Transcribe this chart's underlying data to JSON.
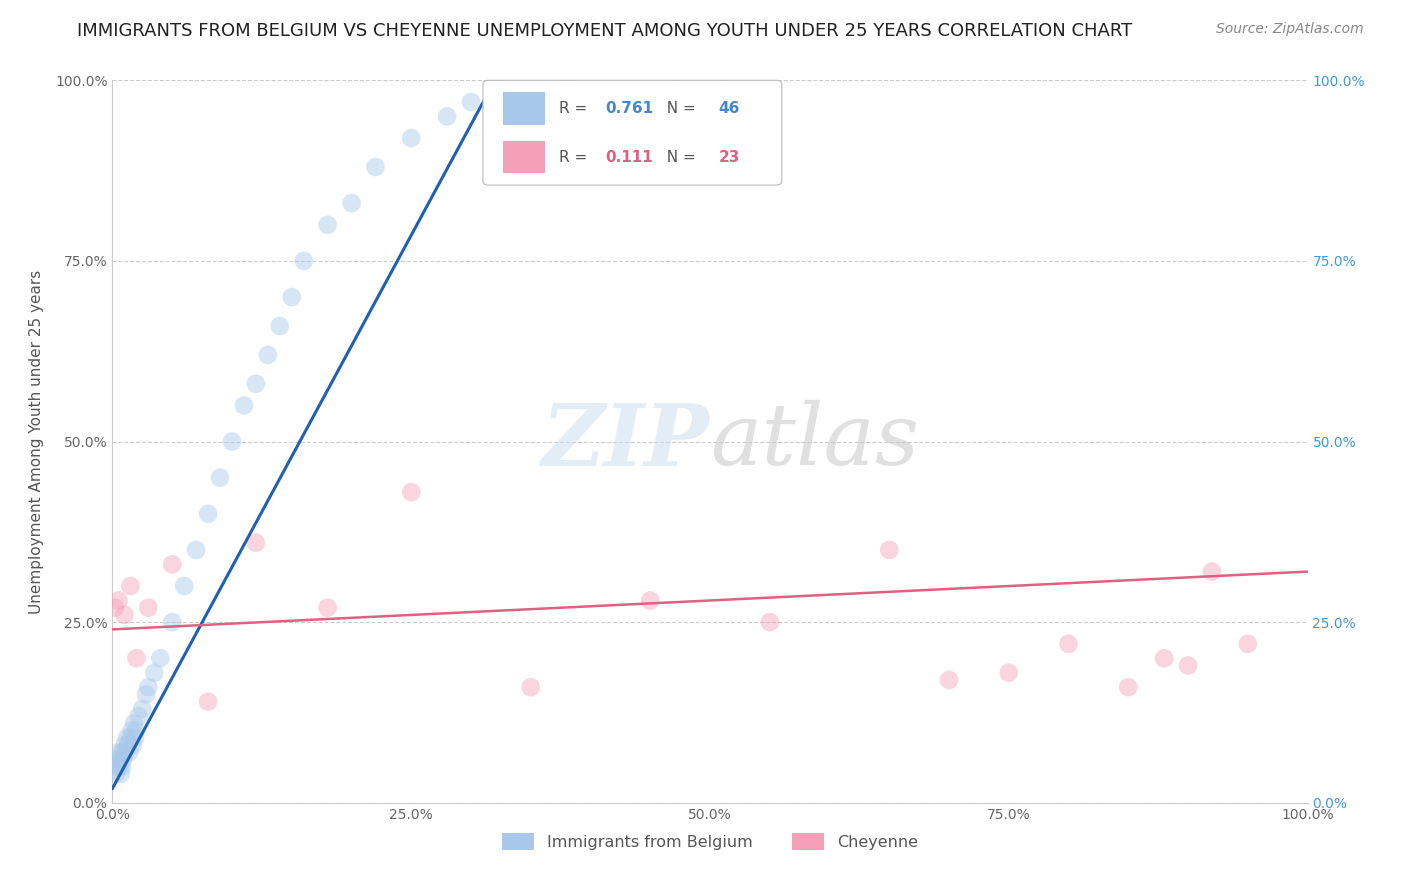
{
  "title": "IMMIGRANTS FROM BELGIUM VS CHEYENNE UNEMPLOYMENT AMONG YOUTH UNDER 25 YEARS CORRELATION CHART",
  "source": "Source: ZipAtlas.com",
  "ylabel": "Unemployment Among Youth under 25 years",
  "legend_entries": [
    {
      "label": "Immigrants from Belgium",
      "R": "0.761",
      "N": "46",
      "color": "#a8c8ea"
    },
    {
      "label": "Cheyenne",
      "R": "0.111",
      "N": "23",
      "color": "#f4a0b8"
    }
  ],
  "blue_scatter_x": [
    0.2,
    0.3,
    0.4,
    0.5,
    0.5,
    0.6,
    0.7,
    0.8,
    0.8,
    0.9,
    1.0,
    1.1,
    1.2,
    1.3,
    1.4,
    1.5,
    1.6,
    1.7,
    1.8,
    1.9,
    2.0,
    2.2,
    2.5,
    2.8,
    3.0,
    3.5,
    4.0,
    5.0,
    6.0,
    7.0,
    8.0,
    9.0,
    10.0,
    11.0,
    12.0,
    13.0,
    14.0,
    15.0,
    16.0,
    18.0,
    20.0,
    22.0,
    25.0,
    28.0,
    30.0,
    32.0
  ],
  "blue_scatter_y": [
    5.0,
    4.0,
    6.0,
    5.0,
    7.0,
    6.0,
    4.0,
    5.0,
    7.0,
    6.0,
    8.0,
    7.0,
    9.0,
    8.0,
    7.0,
    9.0,
    10.0,
    8.0,
    11.0,
    9.0,
    10.0,
    12.0,
    13.0,
    15.0,
    16.0,
    18.0,
    20.0,
    25.0,
    30.0,
    35.0,
    40.0,
    45.0,
    50.0,
    55.0,
    58.0,
    62.0,
    66.0,
    70.0,
    75.0,
    80.0,
    83.0,
    88.0,
    92.0,
    95.0,
    97.0,
    100.0
  ],
  "pink_scatter_x": [
    0.2,
    0.5,
    1.0,
    1.5,
    2.0,
    3.0,
    5.0,
    8.0,
    12.0,
    18.0,
    25.0,
    35.0,
    45.0,
    55.0,
    65.0,
    70.0,
    75.0,
    80.0,
    85.0,
    88.0,
    90.0,
    92.0,
    95.0
  ],
  "pink_scatter_y": [
    27.0,
    28.0,
    26.0,
    30.0,
    20.0,
    27.0,
    33.0,
    14.0,
    36.0,
    27.0,
    43.0,
    16.0,
    28.0,
    25.0,
    35.0,
    17.0,
    18.0,
    22.0,
    16.0,
    20.0,
    19.0,
    32.0,
    22.0
  ],
  "blue_line_x": [
    0.0,
    32.0
  ],
  "blue_line_y": [
    2.0,
    100.0
  ],
  "pink_line_x": [
    0.0,
    100.0
  ],
  "pink_line_y": [
    24.0,
    32.0
  ],
  "xlim": [
    0,
    100
  ],
  "ylim": [
    0,
    100
  ],
  "xticks": [
    0,
    25,
    50,
    75,
    100
  ],
  "yticks": [
    0,
    25,
    50,
    75,
    100
  ],
  "xtick_labels": [
    "0.0%",
    "25.0%",
    "50.0%",
    "75.0%",
    "100.0%"
  ],
  "ytick_labels": [
    "0.0%",
    "25.0%",
    "50.0%",
    "75.0%",
    "100.0%"
  ],
  "scatter_size": 180,
  "scatter_alpha": 0.45,
  "grid_color": "#cccccc",
  "background_color": "#ffffff",
  "title_fontsize": 13,
  "source_fontsize": 10,
  "axis_label_fontsize": 11,
  "tick_fontsize": 10,
  "watermark_zip": "ZIP",
  "watermark_atlas": "atlas",
  "watermark_color_zip": "#c8ddf0",
  "watermark_color_atlas": "#c8c8c8"
}
